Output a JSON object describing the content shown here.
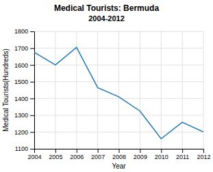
{
  "chart_data": {
    "type": "line",
    "title": "Medical Tourists: Bermuda",
    "subtitle": "2004-2012",
    "x_label": "Year",
    "y_label": "Medical Tourists(Hundreds)",
    "x": [
      2004,
      2005,
      2006,
      2007,
      2008,
      2009,
      2010,
      2011,
      2012
    ],
    "values": [
      1675,
      1600,
      1705,
      1465,
      1410,
      1325,
      1160,
      1258,
      1200
    ],
    "color": "#1f77b4",
    "xlim": [
      2004,
      2012
    ],
    "xticks": [
      2004,
      2005,
      2006,
      2007,
      2008,
      2009,
      2010,
      2011,
      2012
    ],
    "ylim": [
      1100,
      1800
    ],
    "yticks": [
      1100,
      1200,
      1300,
      1400,
      1500,
      1600,
      1700,
      1800
    ],
    "grid": true
  }
}
